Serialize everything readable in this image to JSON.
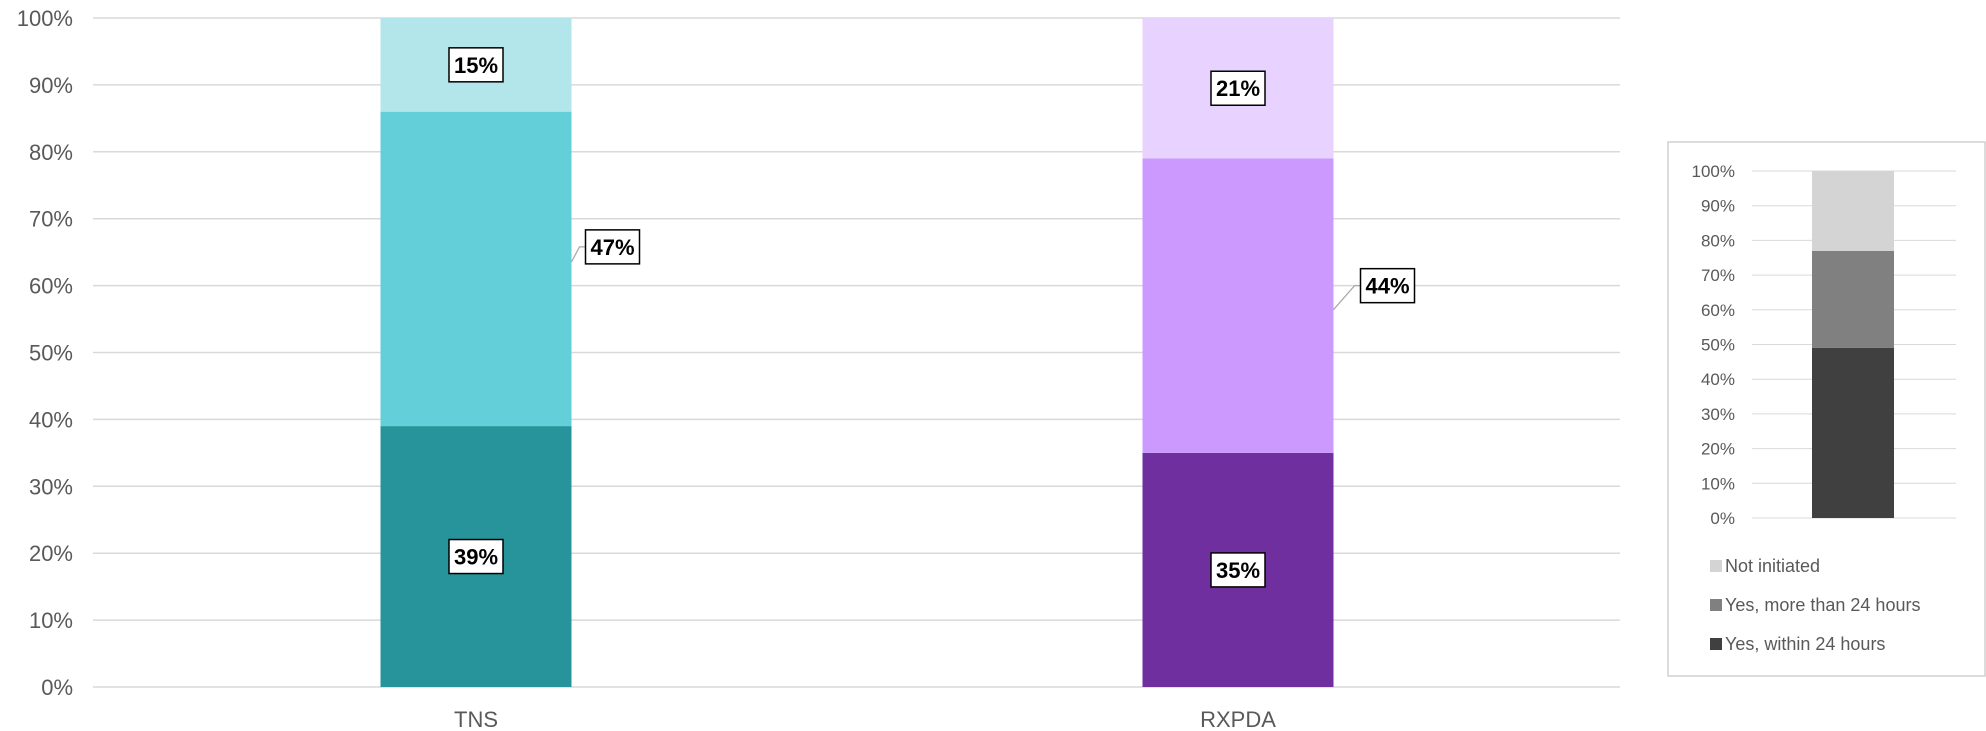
{
  "chart_data": [
    {
      "type": "bar",
      "stacked": true,
      "percent": true,
      "categories": [
        "TNS",
        "RXPDA"
      ],
      "series": [
        {
          "values": [
            39,
            35
          ],
          "colors": [
            "#27939b",
            "#6f2f9f"
          ]
        },
        {
          "values": [
            47,
            44
          ],
          "colors": [
            "#63cfd8",
            "#cc99ff"
          ]
        },
        {
          "values": [
            15,
            21
          ],
          "colors": [
            "#b3e6ea",
            "#e8d2ff"
          ]
        }
      ],
      "data_labels": [
        [
          "39%",
          "35%"
        ],
        [
          "47%",
          "44%"
        ],
        [
          "15%",
          "21%"
        ]
      ],
      "y_ticks": [
        "0%",
        "10%",
        "20%",
        "30%",
        "40%",
        "50%",
        "60%",
        "70%",
        "80%",
        "90%",
        "100%"
      ],
      "ylim": [
        0,
        100
      ],
      "grid": true
    },
    {
      "type": "bar",
      "stacked": true,
      "percent": true,
      "role": "legend-key",
      "series": [
        {
          "name": "Yes, within 24 hours",
          "values": [
            49
          ],
          "color": "#404040"
        },
        {
          "name": "Yes, more than 24 hours",
          "values": [
            28
          ],
          "color": "#808080"
        },
        {
          "name": "Not initiated",
          "values": [
            23
          ],
          "color": "#d4d4d4"
        }
      ],
      "y_ticks": [
        "0%",
        "10%",
        "20%",
        "30%",
        "40%",
        "50%",
        "60%",
        "70%",
        "80%",
        "90%",
        "100%"
      ],
      "ylim": [
        0,
        100
      ],
      "grid": true,
      "legend": {
        "position": "bottom",
        "order": [
          "Not initiated",
          "Yes, more than 24 hours",
          "Yes, within 24 hours"
        ]
      }
    }
  ]
}
